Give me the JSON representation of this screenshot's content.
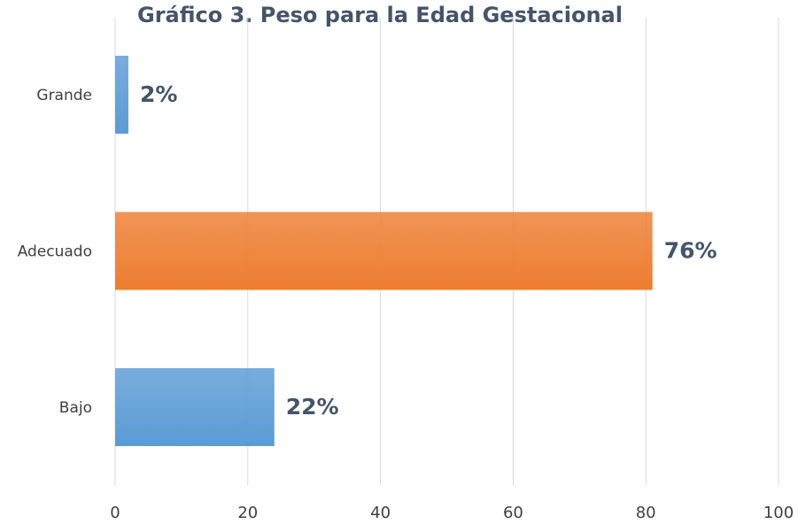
{
  "chart_data": {
    "type": "bar",
    "orientation": "horizontal",
    "title": "Gráfico 3. Peso para la Edad Gestacional",
    "categories": [
      "Grande",
      "Adecuado",
      "Bajo"
    ],
    "values": [
      2,
      81,
      24
    ],
    "value_labels": [
      "2%",
      "76%",
      "22%"
    ],
    "colors": [
      "#5b9bd5",
      "#ed7d31",
      "#5b9bd5"
    ],
    "xlim": [
      0,
      100
    ],
    "xticks": [
      0,
      20,
      40,
      60,
      80,
      100
    ],
    "grid": true
  }
}
